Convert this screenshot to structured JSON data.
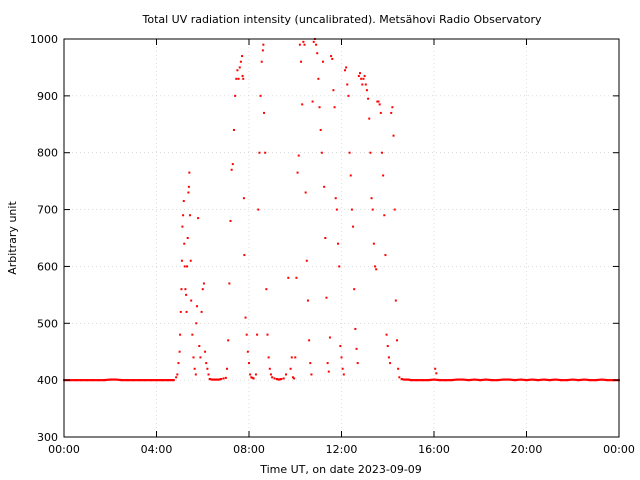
{
  "chart_data": {
    "type": "scatter",
    "title": "Total UV radiation intensity (uncalibrated). Metsähovi Radio Observatory",
    "xlabel": "Time UT, on date 2023-09-09",
    "ylabel": "Arbitrary unit",
    "xlim": [
      0,
      24
    ],
    "ylim": [
      300,
      1000
    ],
    "x_ticks": [
      {
        "value": 0,
        "label": "00:00"
      },
      {
        "value": 4,
        "label": "04:00"
      },
      {
        "value": 8,
        "label": "08:00"
      },
      {
        "value": 12,
        "label": "12:00"
      },
      {
        "value": 16,
        "label": "16:00"
      },
      {
        "value": 20,
        "label": "20:00"
      },
      {
        "value": 24,
        "label": "00:00"
      }
    ],
    "y_ticks": [
      {
        "value": 300,
        "label": "300"
      },
      {
        "value": 400,
        "label": "400"
      },
      {
        "value": 500,
        "label": "500"
      },
      {
        "value": 600,
        "label": "600"
      },
      {
        "value": 700,
        "label": "700"
      },
      {
        "value": 800,
        "label": "800"
      },
      {
        "value": 900,
        "label": "900"
      },
      {
        "value": 1000,
        "label": "1000"
      }
    ],
    "grid": true,
    "series": [
      {
        "color": "#ff0000",
        "points": [
          [
            0.0,
            400
          ],
          [
            0.25,
            400
          ],
          [
            0.5,
            400
          ],
          [
            0.75,
            400
          ],
          [
            1.0,
            400
          ],
          [
            1.25,
            400
          ],
          [
            1.5,
            400
          ],
          [
            1.75,
            400
          ],
          [
            2.0,
            401
          ],
          [
            2.25,
            401
          ],
          [
            2.5,
            400
          ],
          [
            2.75,
            400
          ],
          [
            3.0,
            400
          ],
          [
            3.25,
            400
          ],
          [
            3.5,
            400
          ],
          [
            3.75,
            400
          ],
          [
            4.0,
            400
          ],
          [
            4.25,
            400
          ],
          [
            4.5,
            400
          ],
          [
            4.75,
            400
          ],
          [
            4.85,
            405
          ],
          [
            4.9,
            410
          ],
          [
            4.95,
            430
          ],
          [
            5.0,
            450
          ],
          [
            5.02,
            480
          ],
          [
            5.05,
            520
          ],
          [
            5.08,
            560
          ],
          [
            5.1,
            610
          ],
          [
            5.12,
            670
          ],
          [
            5.15,
            690
          ],
          [
            5.18,
            715
          ],
          [
            5.2,
            640
          ],
          [
            5.22,
            600
          ],
          [
            5.25,
            560
          ],
          [
            5.28,
            550
          ],
          [
            5.3,
            520
          ],
          [
            5.32,
            600
          ],
          [
            5.35,
            650
          ],
          [
            5.38,
            730
          ],
          [
            5.4,
            740
          ],
          [
            5.42,
            765
          ],
          [
            5.45,
            690
          ],
          [
            5.48,
            610
          ],
          [
            5.5,
            540
          ],
          [
            5.55,
            480
          ],
          [
            5.6,
            440
          ],
          [
            5.65,
            420
          ],
          [
            5.7,
            410
          ],
          [
            5.72,
            500
          ],
          [
            5.75,
            530
          ],
          [
            5.8,
            685
          ],
          [
            5.85,
            460
          ],
          [
            5.9,
            440
          ],
          [
            5.95,
            520
          ],
          [
            6.0,
            560
          ],
          [
            6.05,
            570
          ],
          [
            6.1,
            450
          ],
          [
            6.15,
            430
          ],
          [
            6.2,
            420
          ],
          [
            6.25,
            410
          ],
          [
            6.3,
            402
          ],
          [
            6.4,
            401
          ],
          [
            6.5,
            401
          ],
          [
            6.6,
            401
          ],
          [
            6.7,
            401
          ],
          [
            6.8,
            402
          ],
          [
            6.9,
            403
          ],
          [
            7.0,
            404
          ],
          [
            7.05,
            420
          ],
          [
            7.1,
            470
          ],
          [
            7.15,
            570
          ],
          [
            7.2,
            680
          ],
          [
            7.25,
            770
          ],
          [
            7.3,
            780
          ],
          [
            7.35,
            840
          ],
          [
            7.4,
            900
          ],
          [
            7.45,
            930
          ],
          [
            7.5,
            945
          ],
          [
            7.55,
            930
          ],
          [
            7.6,
            950
          ],
          [
            7.65,
            960
          ],
          [
            7.7,
            970
          ],
          [
            7.72,
            935
          ],
          [
            7.75,
            930
          ],
          [
            7.78,
            720
          ],
          [
            7.8,
            620
          ],
          [
            7.85,
            510
          ],
          [
            7.9,
            480
          ],
          [
            7.95,
            450
          ],
          [
            8.0,
            430
          ],
          [
            8.05,
            410
          ],
          [
            8.1,
            405
          ],
          [
            8.15,
            404
          ],
          [
            8.2,
            403
          ],
          [
            8.3,
            410
          ],
          [
            8.35,
            480
          ],
          [
            8.4,
            700
          ],
          [
            8.45,
            800
          ],
          [
            8.5,
            900
          ],
          [
            8.55,
            960
          ],
          [
            8.6,
            980
          ],
          [
            8.62,
            990
          ],
          [
            8.65,
            870
          ],
          [
            8.7,
            800
          ],
          [
            8.75,
            560
          ],
          [
            8.8,
            480
          ],
          [
            8.85,
            440
          ],
          [
            8.9,
            420
          ],
          [
            8.95,
            410
          ],
          [
            9.0,
            405
          ],
          [
            9.1,
            403
          ],
          [
            9.2,
            402
          ],
          [
            9.3,
            401
          ],
          [
            9.4,
            402
          ],
          [
            9.5,
            403
          ],
          [
            9.6,
            410
          ],
          [
            9.7,
            580
          ],
          [
            9.8,
            420
          ],
          [
            9.85,
            440
          ],
          [
            9.9,
            405
          ],
          [
            9.95,
            403
          ],
          [
            10.0,
            440
          ],
          [
            10.05,
            580
          ],
          [
            10.1,
            765
          ],
          [
            10.15,
            795
          ],
          [
            10.2,
            990
          ],
          [
            10.25,
            960
          ],
          [
            10.3,
            885
          ],
          [
            10.35,
            995
          ],
          [
            10.4,
            990
          ],
          [
            10.45,
            730
          ],
          [
            10.5,
            610
          ],
          [
            10.55,
            540
          ],
          [
            10.6,
            470
          ],
          [
            10.65,
            430
          ],
          [
            10.7,
            410
          ],
          [
            10.75,
            890
          ],
          [
            10.8,
            995
          ],
          [
            10.85,
            1000
          ],
          [
            10.9,
            990
          ],
          [
            10.95,
            975
          ],
          [
            11.0,
            930
          ],
          [
            11.05,
            880
          ],
          [
            11.1,
            840
          ],
          [
            11.15,
            800
          ],
          [
            11.2,
            960
          ],
          [
            11.25,
            740
          ],
          [
            11.3,
            650
          ],
          [
            11.35,
            545
          ],
          [
            11.4,
            430
          ],
          [
            11.45,
            415
          ],
          [
            11.5,
            475
          ],
          [
            11.55,
            970
          ],
          [
            11.6,
            965
          ],
          [
            11.65,
            910
          ],
          [
            11.7,
            880
          ],
          [
            11.75,
            720
          ],
          [
            11.8,
            700
          ],
          [
            11.85,
            640
          ],
          [
            11.9,
            600
          ],
          [
            11.95,
            460
          ],
          [
            12.0,
            440
          ],
          [
            12.05,
            420
          ],
          [
            12.1,
            410
          ],
          [
            12.15,
            945
          ],
          [
            12.2,
            950
          ],
          [
            12.25,
            920
          ],
          [
            12.3,
            900
          ],
          [
            12.35,
            800
          ],
          [
            12.4,
            760
          ],
          [
            12.45,
            700
          ],
          [
            12.5,
            670
          ],
          [
            12.55,
            560
          ],
          [
            12.6,
            490
          ],
          [
            12.65,
            455
          ],
          [
            12.7,
            430
          ],
          [
            12.75,
            935
          ],
          [
            12.8,
            940
          ],
          [
            12.85,
            930
          ],
          [
            12.9,
            920
          ],
          [
            12.95,
            930
          ],
          [
            13.0,
            935
          ],
          [
            13.05,
            920
          ],
          [
            13.1,
            910
          ],
          [
            13.15,
            895
          ],
          [
            13.2,
            860
          ],
          [
            13.25,
            800
          ],
          [
            13.3,
            720
          ],
          [
            13.35,
            700
          ],
          [
            13.4,
            640
          ],
          [
            13.45,
            600
          ],
          [
            13.5,
            595
          ],
          [
            13.55,
            890
          ],
          [
            13.6,
            890
          ],
          [
            13.65,
            885
          ],
          [
            13.7,
            870
          ],
          [
            13.75,
            800
          ],
          [
            13.8,
            760
          ],
          [
            13.85,
            690
          ],
          [
            13.9,
            620
          ],
          [
            13.95,
            480
          ],
          [
            14.0,
            460
          ],
          [
            14.05,
            440
          ],
          [
            14.1,
            430
          ],
          [
            14.15,
            870
          ],
          [
            14.2,
            880
          ],
          [
            14.25,
            830
          ],
          [
            14.3,
            700
          ],
          [
            14.35,
            540
          ],
          [
            14.4,
            470
          ],
          [
            14.45,
            420
          ],
          [
            14.5,
            405
          ],
          [
            14.6,
            402
          ],
          [
            14.7,
            401
          ],
          [
            14.8,
            401
          ],
          [
            14.9,
            401
          ],
          [
            15.0,
            400
          ],
          [
            15.25,
            400
          ],
          [
            15.5,
            400
          ],
          [
            15.75,
            400
          ],
          [
            16.0,
            401
          ],
          [
            16.05,
            420
          ],
          [
            16.1,
            412
          ],
          [
            16.25,
            400
          ],
          [
            16.5,
            400
          ],
          [
            16.75,
            400
          ],
          [
            17.0,
            401
          ],
          [
            17.25,
            401
          ],
          [
            17.5,
            400
          ],
          [
            17.75,
            401
          ],
          [
            18.0,
            400
          ],
          [
            18.25,
            401
          ],
          [
            18.5,
            400
          ],
          [
            18.75,
            400
          ],
          [
            19.0,
            401
          ],
          [
            19.25,
            401
          ],
          [
            19.5,
            400
          ],
          [
            19.75,
            401
          ],
          [
            20.0,
            400
          ],
          [
            20.25,
            401
          ],
          [
            20.5,
            400
          ],
          [
            20.75,
            401
          ],
          [
            21.0,
            400
          ],
          [
            21.25,
            401
          ],
          [
            21.5,
            400
          ],
          [
            21.75,
            400
          ],
          [
            22.0,
            401
          ],
          [
            22.25,
            400
          ],
          [
            22.5,
            401
          ],
          [
            22.75,
            400
          ],
          [
            23.0,
            400
          ],
          [
            23.25,
            401
          ],
          [
            23.5,
            400
          ],
          [
            23.75,
            400
          ],
          [
            24.0,
            400
          ]
        ]
      }
    ]
  }
}
